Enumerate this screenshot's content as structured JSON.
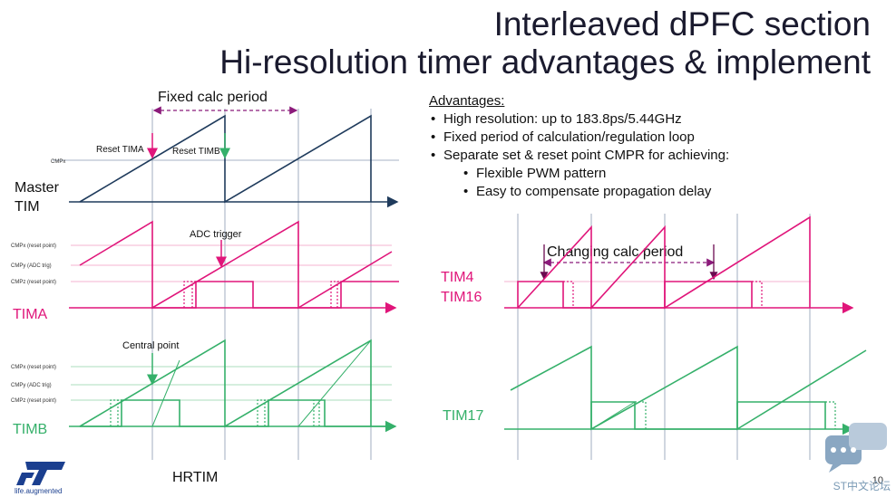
{
  "slide": {
    "title_line1": "Interleaved dPFC section",
    "title_line2": "Hi-resolution timer advantages & implement",
    "page_number": "10"
  },
  "advantages": {
    "heading": "Advantages:",
    "items": [
      "High resolution: up to 183.8ps/5.44GHz",
      "Fixed period of calculation/regulation loop",
      "Separate set & reset point CMPR for achieving:"
    ],
    "subitems": [
      "Flexible PWM pattern",
      "Easy to compensate propagation delay"
    ]
  },
  "hrtim": {
    "fixed_period_label": "Fixed calc period",
    "reset_tima_label": "Reset TIMA",
    "reset_timb_label": "Reset TIMB",
    "master_cmpx_label": "CMPx",
    "master_label_line1": "Master",
    "master_label_line2": "TIM",
    "adc_trigger_label": "ADC trigger",
    "tima_cmpx_label": "CMPx (reset point)",
    "tima_cmpy_label": "CMPy (ADC trig)",
    "tima_cmpz_label": "CMPz (reset point)",
    "tima_label": "TIMA",
    "central_point_label": "Central point",
    "timb_cmpx_label": "CMPx (reset point)",
    "timb_cmpy_label": "CMPy (ADC trig)",
    "timb_cmpz_label": "CMPz (reset point)",
    "timb_label": "TIMB",
    "bottom_label": "HRTIM"
  },
  "general_timers": {
    "changing_period_label": "Changing calc period",
    "tim4_label": "TIM4",
    "tim16_label": "TIM16",
    "tim17_label": "TIM17"
  },
  "logo": {
    "tagline": "life.augmented",
    "watermark": "ST中文论坛"
  },
  "colors": {
    "master": "#1f3b5c",
    "tima": "#e0157a",
    "timb": "#35b06a",
    "grid": "#8a9ab0",
    "arrow_period": "#8b1a7a"
  }
}
